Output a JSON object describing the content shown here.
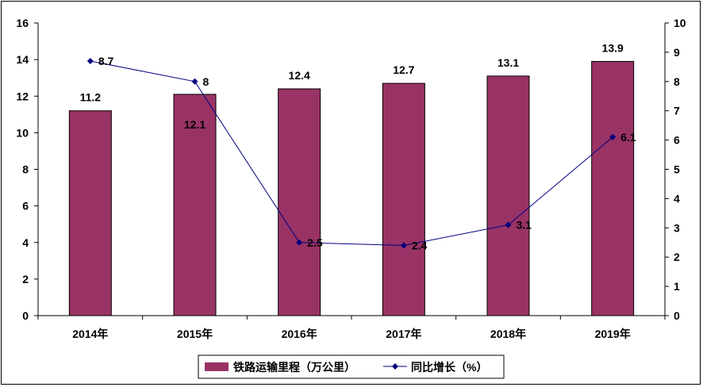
{
  "chart_data": {
    "type": "bar+line",
    "categories": [
      "2014年",
      "2015年",
      "2016年",
      "2017年",
      "2018年",
      "2019年"
    ],
    "series": [
      {
        "name": "铁路运输里程（万公里）",
        "type": "bar",
        "axis": "left",
        "values": [
          11.2,
          12.1,
          12.4,
          12.7,
          13.1,
          13.9
        ],
        "labels": [
          "11.2",
          "12.1",
          "12.4",
          "12.7",
          "13.1",
          "13.9"
        ],
        "color": "#993366"
      },
      {
        "name": "同比增长（%）",
        "type": "line",
        "axis": "right",
        "values": [
          8.7,
          8,
          2.5,
          2.4,
          3.1,
          6.1
        ],
        "labels": [
          "8.7",
          "8",
          "2.5",
          "2.4",
          "3.1",
          "6.1"
        ],
        "color": "#000080"
      }
    ],
    "y_left": {
      "min": 0,
      "max": 16,
      "step": 2,
      "ticks": [
        "0",
        "2",
        "4",
        "6",
        "8",
        "10",
        "12",
        "14",
        "16"
      ]
    },
    "y_right": {
      "min": 0,
      "max": 10,
      "step": 1,
      "ticks": [
        "0",
        "1",
        "2",
        "3",
        "4",
        "5",
        "6",
        "7",
        "8",
        "9",
        "10"
      ]
    },
    "legend": "bottom-center",
    "grid": false
  }
}
